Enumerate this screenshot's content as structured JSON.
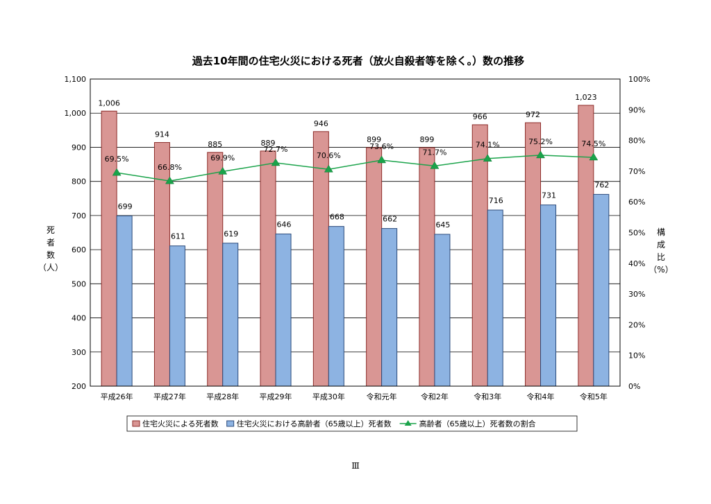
{
  "page_number": "Ⅲ",
  "colors": {
    "series_total": "#d99694",
    "series_total_stroke": "#8b2a27",
    "series_elderly": "#8db3e2",
    "series_elderly_stroke": "#2b4a7a",
    "series_ratio": "#1aa34a",
    "grid": "#000000"
  },
  "chart_data": {
    "type": "bar",
    "title": "過去10年間の住宅火災における死者（放火自殺者等を除く。）数の推移",
    "ylabel": "死者数（人）",
    "ylabel_chars": [
      "死",
      "者",
      "数",
      "（人）"
    ],
    "y2label": "構成比（%）",
    "y2label_chars": [
      "構",
      "成",
      "比",
      "（%）"
    ],
    "ylim": [
      200,
      1100
    ],
    "yticks": [
      "200",
      "300",
      "400",
      "500",
      "600",
      "700",
      "800",
      "900",
      "1,000",
      "1,100"
    ],
    "y2lim": [
      0,
      100
    ],
    "y2ticks": [
      "0%",
      "10%",
      "20%",
      "30%",
      "40%",
      "50%",
      "60%",
      "70%",
      "80%",
      "90%",
      "100%"
    ],
    "grid": true,
    "legend_position": "bottom",
    "categories": [
      "平成26年",
      "平成27年",
      "平成28年",
      "平成29年",
      "平成30年",
      "令和元年",
      "令和2年",
      "令和3年",
      "令和4年",
      "令和5年"
    ],
    "series": [
      {
        "name": "住宅火災による死者数",
        "kind": "bar",
        "axis": "left",
        "values": [
          1006,
          914,
          885,
          889,
          946,
          899,
          899,
          966,
          972,
          1023
        ],
        "labels": [
          "1,006",
          "914",
          "885",
          "889",
          "946",
          "899",
          "899",
          "966",
          "972",
          "1,023"
        ]
      },
      {
        "name": "住宅火災における高齢者（65歳以上）死者数",
        "kind": "bar",
        "axis": "left",
        "values": [
          699,
          611,
          619,
          646,
          668,
          662,
          645,
          716,
          731,
          762
        ],
        "labels": [
          "699",
          "611",
          "619",
          "646",
          "668",
          "662",
          "645",
          "716",
          "731",
          "762"
        ]
      },
      {
        "name": "高齢者（65歳以上）死者数の割合",
        "kind": "line",
        "axis": "right",
        "values": [
          69.5,
          66.8,
          69.9,
          72.7,
          70.6,
          73.6,
          71.7,
          74.1,
          75.2,
          74.5
        ],
        "labels": [
          "69.5%",
          "66.8%",
          "69.9%",
          "72.7%",
          "70.6%",
          "73.6%",
          "71.7%",
          "74.1%",
          "75.2%",
          "74.5%"
        ]
      }
    ]
  }
}
